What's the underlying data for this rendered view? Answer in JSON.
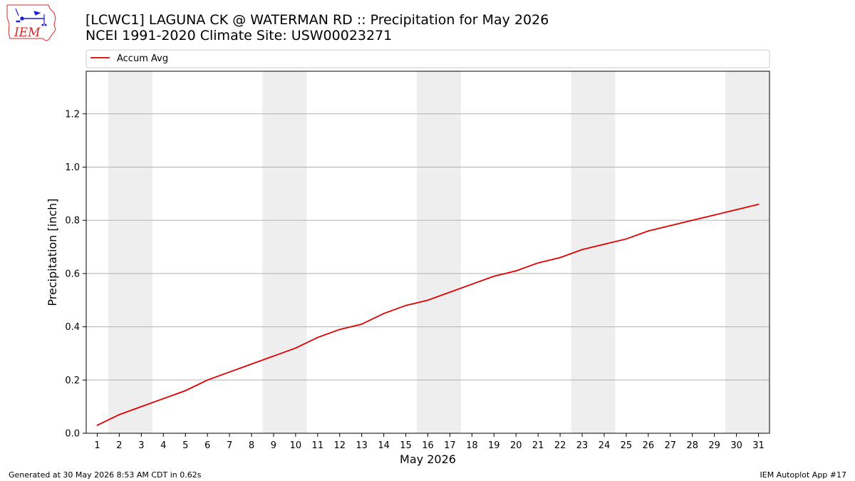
{
  "header": {
    "title_line1": "[LCWC1] LAGUNA CK @ WATERMAN RD :: Precipitation for May 2026",
    "title_line2": "NCEI 1991-2020 Climate Site: USW00023271"
  },
  "logo": {
    "text": "IEM",
    "icon": "iowa-state-weather-logo-icon"
  },
  "footer": {
    "generated": "Generated at 30 May 2026 8:53 AM CDT in 0.62s",
    "app": "IEM Autoplot App #17"
  },
  "colors": {
    "line": "#e00000",
    "weekend_band": "#eeeeee",
    "grid": "#b0b0b0",
    "logo_red": "#d42a2a",
    "logo_blue": "#1a1adc"
  },
  "chart_data": {
    "type": "line",
    "title": "",
    "xlabel": "May 2026",
    "ylabel": "Precipitation [inch]",
    "xlim": [
      0.5,
      31.5
    ],
    "ylim": [
      0,
      1.36
    ],
    "yticks": [
      0.0,
      0.2,
      0.4,
      0.6,
      0.8,
      1.0,
      1.2
    ],
    "ytick_labels": [
      "0.0",
      "0.2",
      "0.4",
      "0.6",
      "0.8",
      "1.0",
      "1.2"
    ],
    "x": [
      1,
      2,
      3,
      4,
      5,
      6,
      7,
      8,
      9,
      10,
      11,
      12,
      13,
      14,
      15,
      16,
      17,
      18,
      19,
      20,
      21,
      22,
      23,
      24,
      25,
      26,
      27,
      28,
      29,
      30,
      31
    ],
    "xtick_labels": [
      "1",
      "2",
      "3",
      "4",
      "5",
      "6",
      "7",
      "8",
      "9",
      "10",
      "11",
      "12",
      "13",
      "14",
      "15",
      "16",
      "17",
      "18",
      "19",
      "20",
      "21",
      "22",
      "23",
      "24",
      "25",
      "26",
      "27",
      "28",
      "29",
      "30",
      "31"
    ],
    "grid": "horizontal",
    "legend_position": "top-left",
    "weekend_days": [
      [
        2,
        3
      ],
      [
        9,
        10
      ],
      [
        16,
        17
      ],
      [
        23,
        24
      ],
      [
        30,
        31
      ]
    ],
    "series": [
      {
        "name": "Accum Avg",
        "values": [
          0.03,
          0.07,
          0.1,
          0.13,
          0.16,
          0.2,
          0.23,
          0.26,
          0.29,
          0.32,
          0.36,
          0.39,
          0.41,
          0.45,
          0.48,
          0.5,
          0.53,
          0.56,
          0.59,
          0.61,
          0.64,
          0.66,
          0.69,
          0.71,
          0.73,
          0.76,
          0.78,
          0.8,
          0.82,
          0.84,
          0.86
        ]
      }
    ]
  }
}
